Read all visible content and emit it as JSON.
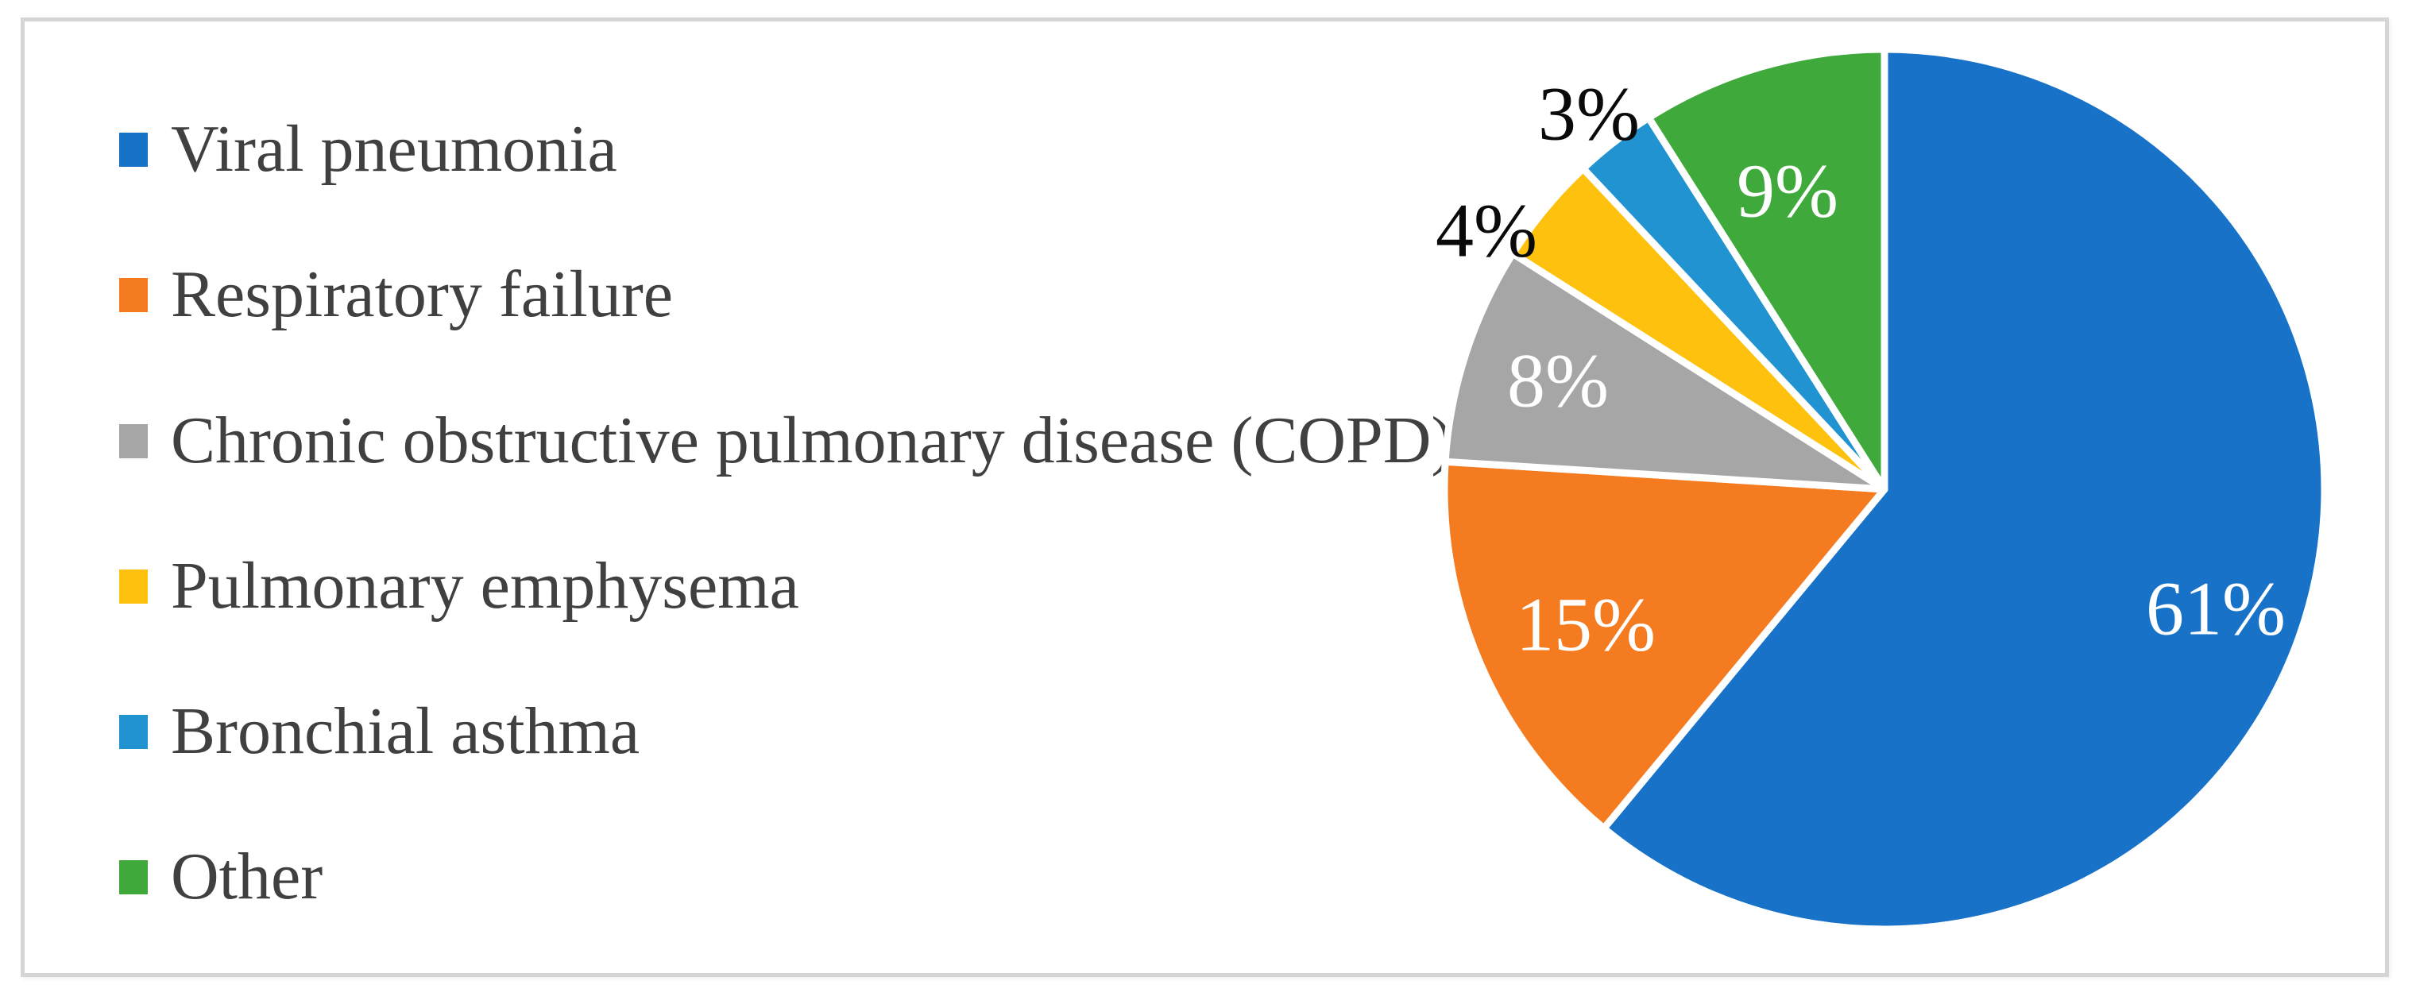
{
  "chart_data": {
    "type": "pie",
    "title": "",
    "legend_position": "left",
    "direction": "clockwise",
    "start_angle_deg": 0,
    "inside_label_color": "#ffffff",
    "outside_label_color": "#0a0a0a",
    "legend_text_color": "#404040",
    "slice_border_color": "#ffffff",
    "categories": [
      "Viral pneumonia",
      "Respiratory failure",
      "Chronic obstructive pulmonary disease (COPD)",
      "Pulmonary emphysema",
      "Bronchial asthma",
      "Other"
    ],
    "values": [
      61,
      15,
      8,
      4,
      3,
      9
    ],
    "slices": [
      {
        "label": "Viral pneumonia",
        "value": 61,
        "pct_label": "61%",
        "color": "#1772c8",
        "label_placement": "inside"
      },
      {
        "label": "Respiratory failure",
        "value": 15,
        "pct_label": "15%",
        "color": "#f57b20",
        "label_placement": "inside"
      },
      {
        "label": "Chronic obstructive pulmonary disease (COPD)",
        "value": 8,
        "pct_label": "8%",
        "color": "#a6a6a6",
        "label_placement": "inside"
      },
      {
        "label": "Pulmonary emphysema",
        "value": 4,
        "pct_label": "4%",
        "color": "#fec10d",
        "label_placement": "outside"
      },
      {
        "label": "Bronchial asthma",
        "value": 3,
        "pct_label": "3%",
        "color": "#2193d0",
        "label_placement": "outside"
      },
      {
        "label": "Other",
        "value": 9,
        "pct_label": "9%",
        "color": "#3fa93c",
        "label_placement": "inside"
      }
    ]
  }
}
